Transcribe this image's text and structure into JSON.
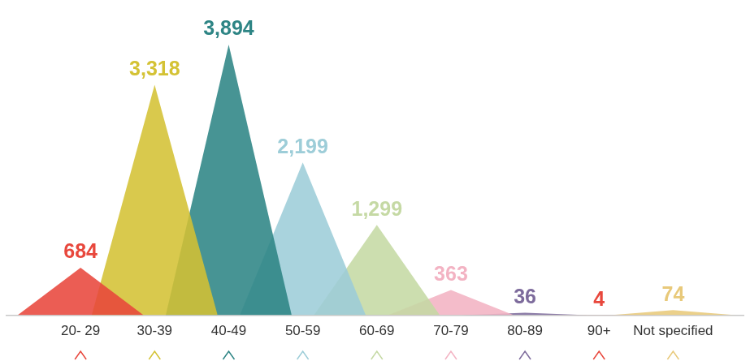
{
  "chart_data": {
    "type": "area",
    "categories": [
      "20- 29",
      "30-39",
      "40-49",
      "50-59",
      "60-69",
      "70-79",
      "80-89",
      "90+",
      "Not specified"
    ],
    "values": [
      684,
      3318,
      3894,
      2199,
      1299,
      363,
      36,
      4,
      74
    ],
    "value_labels": [
      "684",
      "3,318",
      "3,894",
      "2,199",
      "1,299",
      "363",
      "36",
      "4",
      "74"
    ],
    "colors": [
      "#e8473c",
      "#d4c234",
      "#2e8585",
      "#9dcdd8",
      "#c5d9a4",
      "#f3b3c3",
      "#7d6b9c",
      "#e8473c",
      "#e8c97a"
    ],
    "data_labels": true,
    "tick_labels": "x",
    "grid": false
  }
}
